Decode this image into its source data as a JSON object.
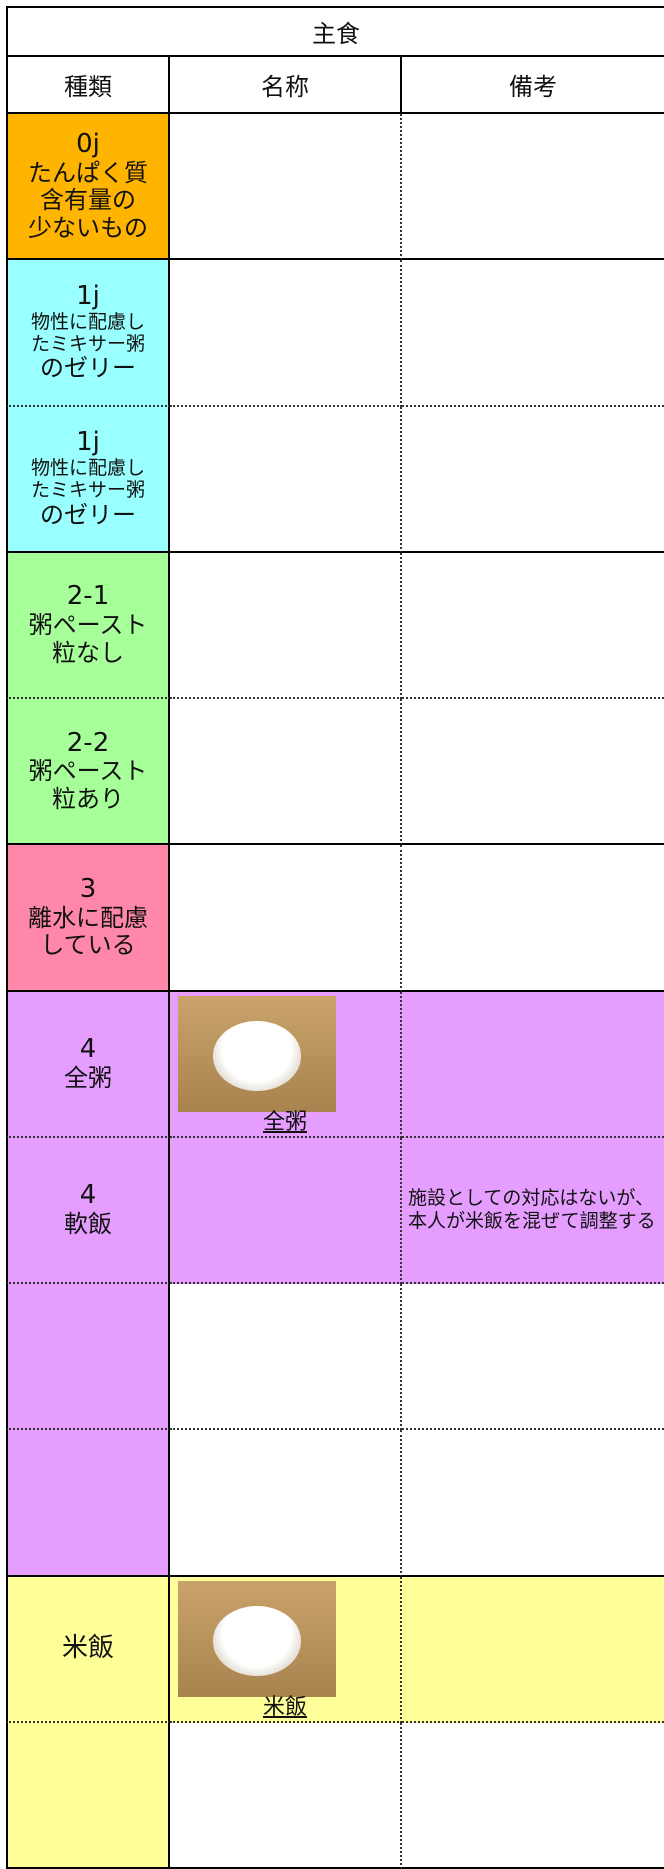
{
  "header": {
    "title": "主食",
    "columns": [
      "種類",
      "名称",
      "備考"
    ]
  },
  "rows": [
    {
      "kind": [
        "0j",
        "たんぱく質",
        "含有量の",
        "少ないもの"
      ],
      "name": null,
      "note": null,
      "color": "#ffb400"
    },
    {
      "kind": [
        "1j",
        "物性に配慮し",
        "たミキサー粥",
        "のゼリー"
      ],
      "name": null,
      "note": null,
      "color": "#99ffff"
    },
    {
      "kind": [
        "1j",
        "物性に配慮し",
        "たミキサー粥",
        "のゼリー"
      ],
      "name": null,
      "note": null,
      "color": "#99ffff"
    },
    {
      "kind": [
        "2-1",
        "粥ペースト",
        "粒なし"
      ],
      "name": null,
      "note": null,
      "color": "#a6ff99"
    },
    {
      "kind": [
        "2-2",
        "粥ペースト",
        "粒あり"
      ],
      "name": null,
      "note": null,
      "color": "#a6ff99"
    },
    {
      "kind": [
        "3",
        "離水に配慮",
        "している"
      ],
      "name": null,
      "note": null,
      "color": "#ff88aa"
    },
    {
      "kind": [
        "4",
        "全粥"
      ],
      "name": "全粥",
      "note": null,
      "color": "#e59eff"
    },
    {
      "kind": [
        "4",
        "軟飯"
      ],
      "name": null,
      "note": "施設としての対応はないが、本人が米飯を混ぜて調整する",
      "color": "#e59eff"
    },
    {
      "kind": null,
      "name": null,
      "note": null,
      "color": "#e59eff"
    },
    {
      "kind": null,
      "name": null,
      "note": null,
      "color": "#e59eff"
    },
    {
      "kind": [
        "米飯"
      ],
      "name": "米飯",
      "note": null,
      "color": "#ffff99"
    },
    {
      "kind": null,
      "name": null,
      "note": null,
      "color": "#ffff99"
    }
  ]
}
